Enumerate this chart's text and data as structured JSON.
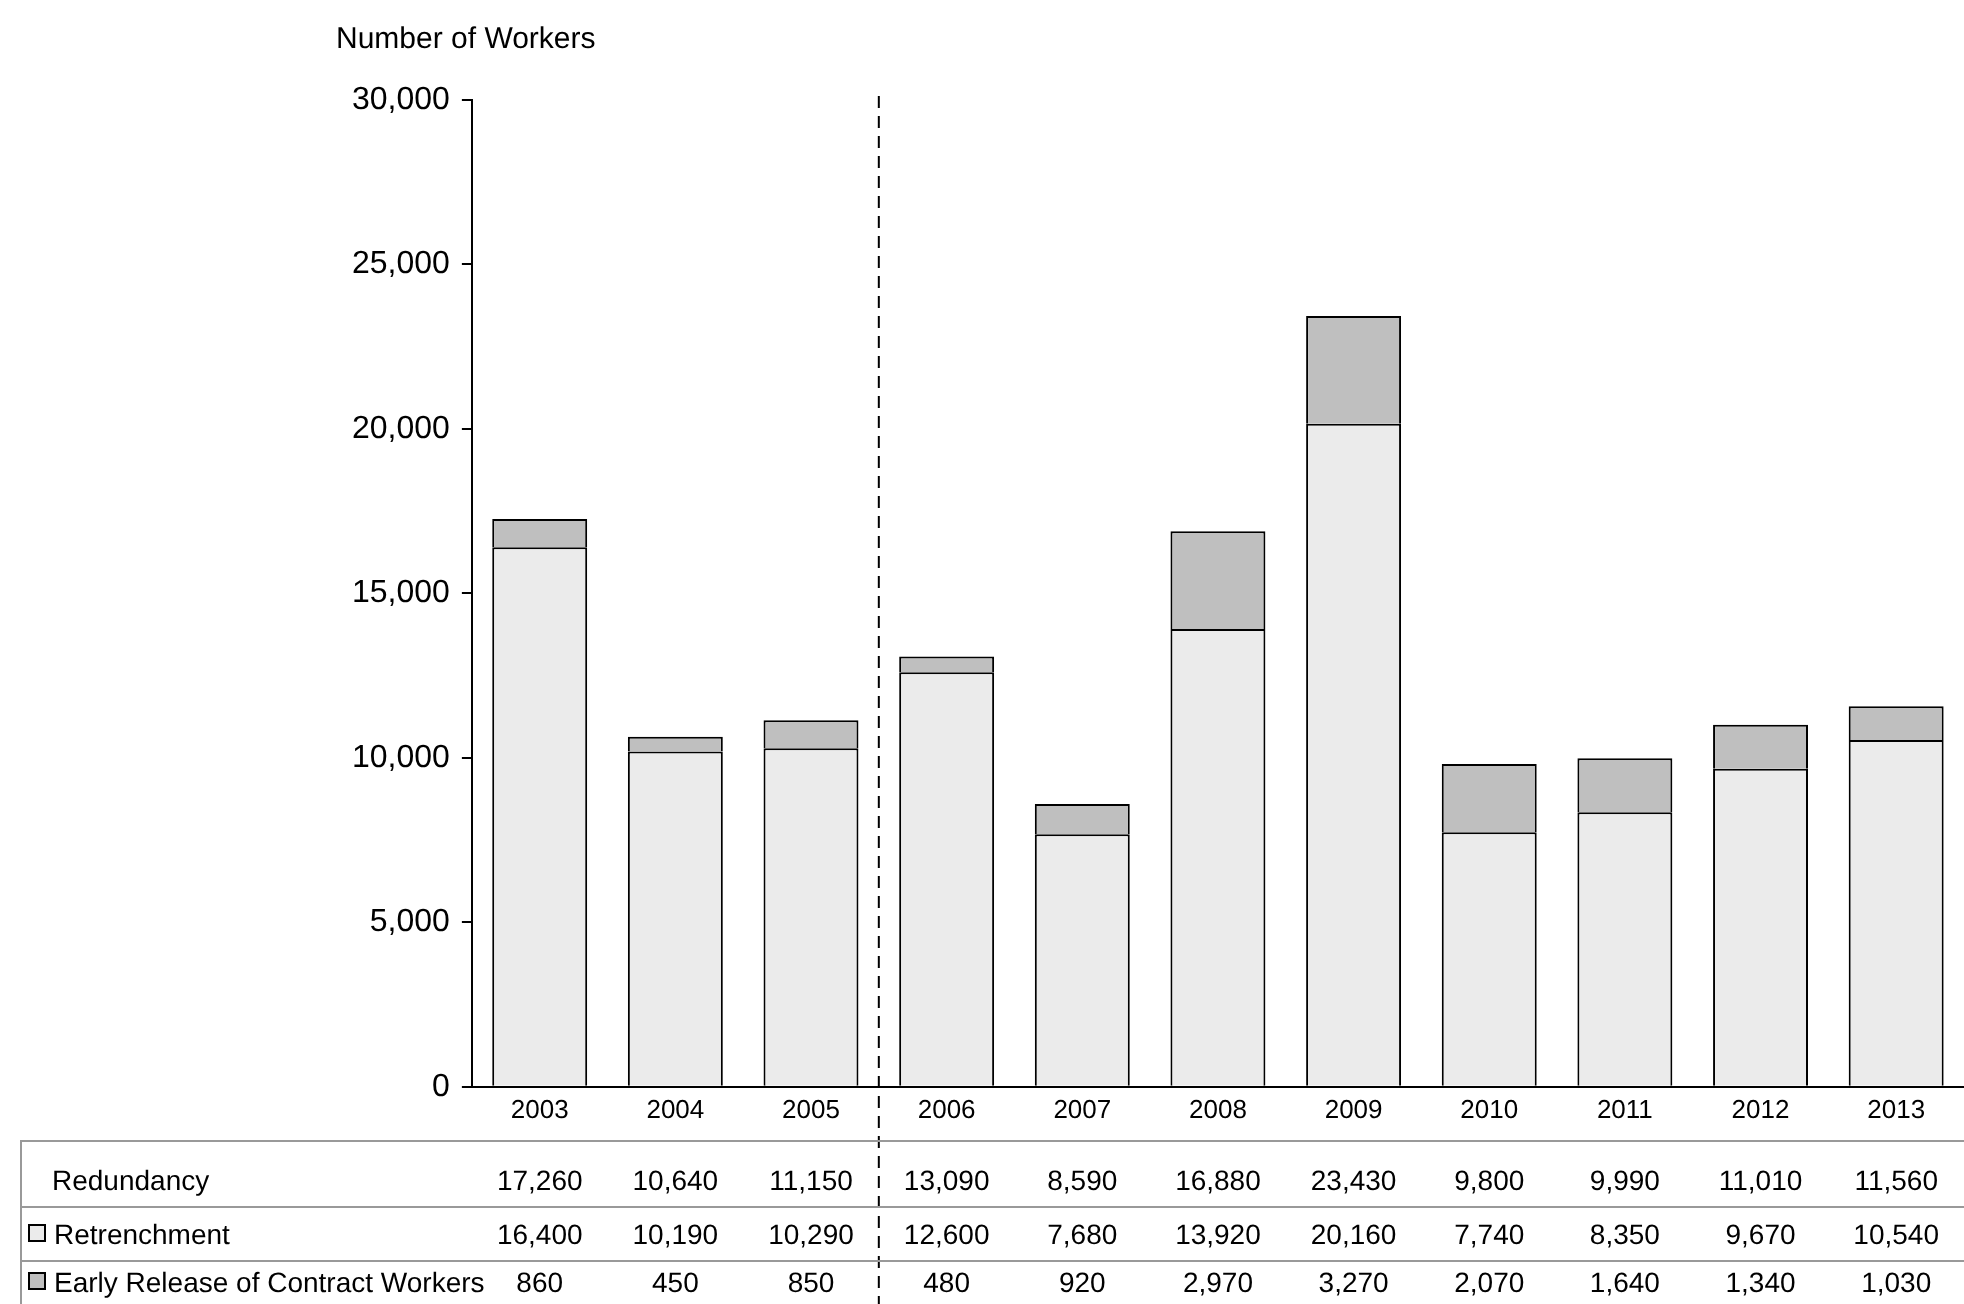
{
  "chart_data": {
    "type": "bar",
    "stacked": true,
    "ylabel": "Number of Workers",
    "categories": [
      "2003",
      "2004",
      "2005",
      "2006",
      "2007",
      "2008",
      "2009",
      "2010",
      "2011",
      "2012",
      "2013"
    ],
    "series": [
      {
        "name": "Retrenchment",
        "color": "#ebebeb",
        "values": [
          16400,
          10190,
          10290,
          12600,
          7680,
          13920,
          20160,
          7740,
          8350,
          9670,
          10540
        ],
        "value_labels": [
          "16,400",
          "10,190",
          "10,290",
          "12,600",
          "7,680",
          "13,920",
          "20,160",
          "7,740",
          "8,350",
          "9,670",
          "10,540"
        ]
      },
      {
        "name": "Early Release of Contract Workers",
        "color": "#bfbfbf",
        "values": [
          860,
          450,
          850,
          480,
          920,
          2970,
          3270,
          2070,
          1640,
          1340,
          1030
        ],
        "value_labels": [
          "860",
          "450",
          "850",
          "480",
          "920",
          "2,970",
          "3,270",
          "2,070",
          "1,640",
          "1,340",
          "1,030"
        ]
      }
    ],
    "annotations": [
      "Redundancy",
      "17,260",
      "10,640",
      "11,150",
      "13,090",
      "8,590",
      "16,880",
      "23,430",
      "9,800",
      "9,990",
      "11,010",
      "11,560"
    ],
    "ylim": [
      0,
      30000
    ],
    "yticks": [
      {
        "value": 0,
        "label": "0"
      },
      {
        "value": 5000,
        "label": "5,000"
      },
      {
        "value": 10000,
        "label": "10,000"
      },
      {
        "value": 15000,
        "label": "15,000"
      },
      {
        "value": 20000,
        "label": "20,000"
      },
      {
        "value": 25000,
        "label": "25,000"
      },
      {
        "value": 30000,
        "label": "30,000"
      }
    ],
    "grid": false,
    "legend": "bottom"
  }
}
